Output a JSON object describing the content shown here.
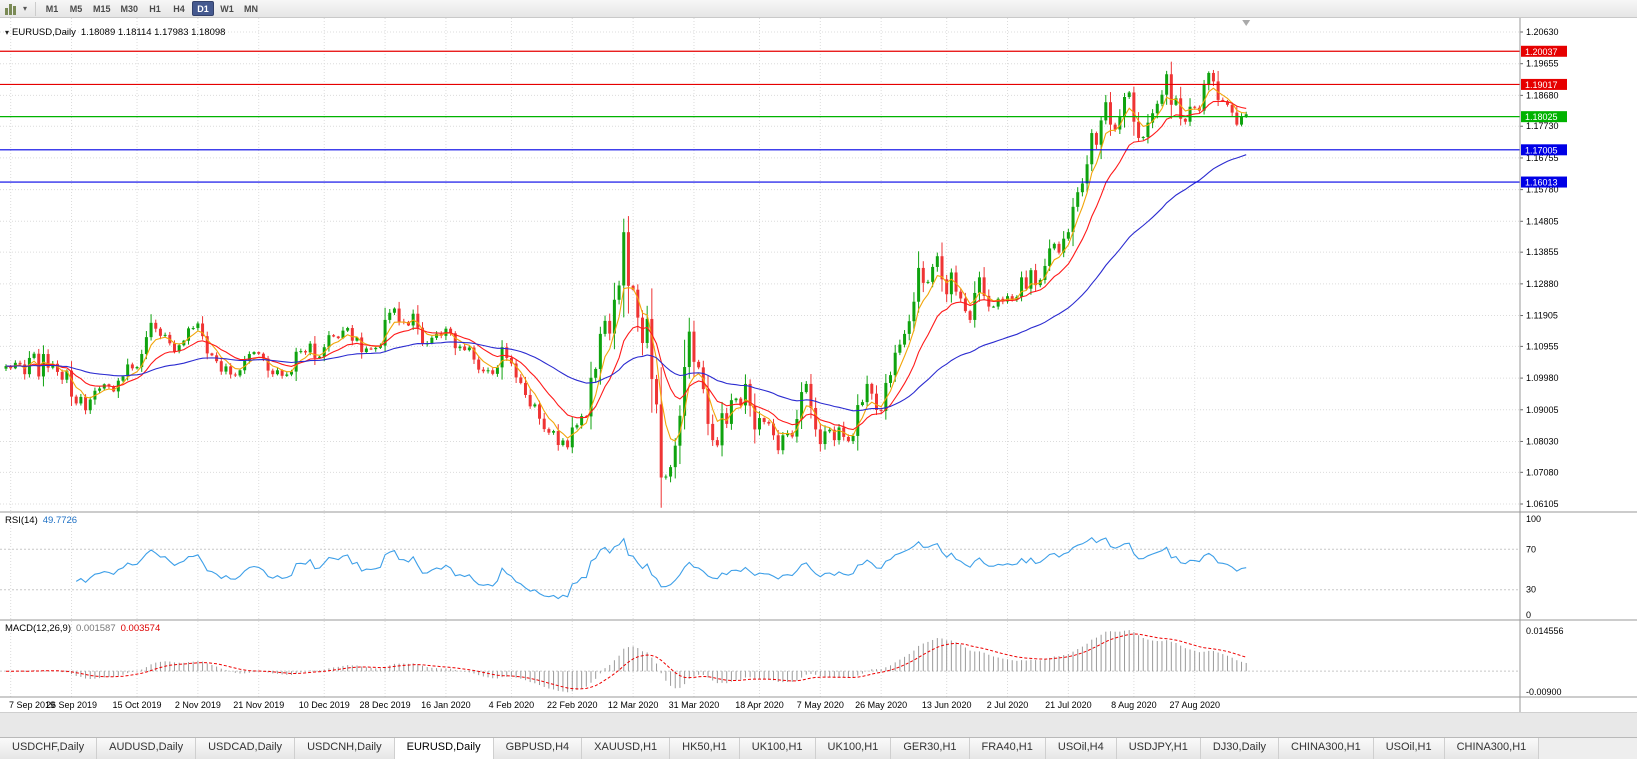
{
  "toolbar": {
    "timeframes": [
      "M1",
      "M5",
      "M15",
      "M30",
      "H1",
      "H4",
      "D1",
      "W1",
      "MN"
    ],
    "active_timeframe": "D1",
    "chart_type_icon": "bar-chart-icon",
    "dropdown_icon": "chevron-down-icon"
  },
  "main_chart": {
    "title": "EURUSD,Daily",
    "ohlc": "1.18089 1.18114 1.17983 1.18098",
    "y_axis_labels": [
      "1.20630",
      "1.19655",
      "1.18680",
      "1.17730",
      "1.16755",
      "1.15780",
      "1.14805",
      "1.13855",
      "1.12880",
      "1.11905",
      "1.10955",
      "1.09980",
      "1.09005",
      "1.08030",
      "1.07080",
      "1.06105"
    ],
    "price_tags": [
      {
        "value": "1.20037",
        "color": "#e60000"
      },
      {
        "value": "1.19017",
        "color": "#e60000"
      },
      {
        "value": "1.18025",
        "color": "#00b300"
      },
      {
        "value": "1.17005",
        "color": "#0000e6"
      },
      {
        "value": "1.16013",
        "color": "#0000e6"
      }
    ]
  },
  "rsi_panel": {
    "name": "RSI(14)",
    "value": "49.7726",
    "axis_labels": [
      "100",
      "70",
      "30",
      "0"
    ],
    "level_lines": [
      70,
      30
    ],
    "line_color": "#3d9fe8"
  },
  "macd_panel": {
    "name": "MACD(12,26,9)",
    "main_value": "0.001587",
    "signal_value": "0.003574",
    "axis_max_label": "0.014556",
    "axis_min_label": "-0.00900",
    "histogram_color": "#9a9a9a",
    "signal_color": "#ee0000"
  },
  "bottom_tabs": {
    "active_index": 4,
    "tabs": [
      "USDCHF,Daily",
      "AUDUSD,Daily",
      "USDCAD,Daily",
      "USDCNH,Daily",
      "EURUSD,Daily",
      "GBPUSD,H4",
      "XAUUSD,H1",
      "HK50,H1",
      "UK100,H1",
      "UK100,H1",
      "GER30,H1",
      "FRA40,H1",
      "USOil,H4",
      "USDJPY,H1",
      "DJ30,Daily",
      "CHINA300,H1",
      "USOil,H1",
      "CHINA300,H1"
    ]
  },
  "chart_data": {
    "type": "candlestick",
    "symbol": "EURUSD",
    "period": "Daily",
    "current_ohlc": {
      "open": 1.18089,
      "high": 1.18114,
      "low": 1.17983,
      "close": 1.18098
    },
    "price_range": {
      "axis_top": 1.21061,
      "axis_bottom": 1.05859
    },
    "up_color": "#0fa30f",
    "down_color": "#ef3434",
    "x_labels": [
      "7 Sep 2019",
      "26 Sep 2019",
      "15 Oct 2019",
      "2 Nov 2019",
      "21 Nov 2019",
      "10 Dec 2019",
      "28 Dec 2019",
      "16 Jan 2020",
      "4 Feb 2020",
      "22 Feb 2020",
      "12 Mar 2020",
      "31 Mar 2020",
      "18 Apr 2020",
      "7 May 2020",
      "26 May 2020",
      "13 Jun 2020",
      "2 Jul 2020",
      "21 Jul 2020",
      "8 Aug 2020",
      "27 Aug 2020"
    ],
    "horizontal_levels": [
      {
        "price": 1.20037,
        "color": "#e60000"
      },
      {
        "price": 1.19017,
        "color": "#e60000"
      },
      {
        "price": 1.18025,
        "color": "#00b300"
      },
      {
        "price": 1.17005,
        "color": "#0000e6"
      },
      {
        "price": 1.16013,
        "color": "#0000e6"
      }
    ],
    "moving_averages": [
      {
        "period": 5,
        "color": "#f2a50a"
      },
      {
        "period": 14,
        "color": "#ff1a1a"
      },
      {
        "period": 50,
        "color": "#2b2bd0"
      }
    ],
    "indicators": [
      {
        "name": "RSI",
        "period": 14,
        "value": 49.7726
      },
      {
        "name": "MACD",
        "fast": 12,
        "slow": 26,
        "signal": 9,
        "main": 0.001587,
        "signal_value": 0.003574
      }
    ],
    "closes": [
      1.1035,
      1.1028,
      1.1045,
      1.104,
      1.101,
      1.106,
      1.1073,
      1.1003,
      1.1072,
      1.103,
      1.1042,
      1.1017,
      1.0993,
      1.1021,
      1.0941,
      1.092,
      1.094,
      1.0899,
      1.0932,
      1.0959,
      1.0966,
      1.0979,
      1.0972,
      1.0957,
      1.099,
      1.1003,
      1.104,
      1.1028,
      1.1032,
      1.1072,
      1.1124,
      1.1168,
      1.115,
      1.1128,
      1.1131,
      1.1105,
      1.108,
      1.1099,
      1.1113,
      1.1151,
      1.1152,
      1.1166,
      1.1127,
      1.1074,
      1.1068,
      1.105,
      1.1018,
      1.1034,
      1.1009,
      1.1006,
      1.1022,
      1.1051,
      1.1072,
      1.1078,
      1.1073,
      1.1058,
      1.1021,
      1.101,
      1.1022,
      1.1005,
      1.1009,
      1.1018,
      1.1079,
      1.1081,
      1.1077,
      1.1104,
      1.106,
      1.1064,
      1.1093,
      1.113,
      1.1126,
      1.1121,
      1.1144,
      1.1152,
      1.1113,
      1.1123,
      1.1078,
      1.1089,
      1.1087,
      1.1091,
      1.1098,
      1.1177,
      1.1199,
      1.1212,
      1.1172,
      1.1171,
      1.116,
      1.1196,
      1.1153,
      1.1103,
      1.1105,
      1.1122,
      1.1134,
      1.1128,
      1.115,
      1.1136,
      1.109,
      1.1095,
      1.1084,
      1.1092,
      1.1055,
      1.1024,
      1.1019,
      1.1022,
      1.1011,
      1.1031,
      1.1093,
      1.106,
      1.1043,
      1.1,
      1.0983,
      1.0946,
      1.0911,
      1.0917,
      1.0873,
      1.0841,
      1.083,
      1.0835,
      1.0792,
      1.0806,
      1.0785,
      1.0846,
      1.0853,
      1.0881,
      1.088,
      1.0999,
      1.1026,
      1.1134,
      1.1174,
      1.1135,
      1.1239,
      1.1283,
      1.1447,
      1.1282,
      1.127,
      1.1184,
      1.1106,
      1.118,
      1.0995,
      1.0917,
      1.0692,
      1.0695,
      1.0724,
      1.079,
      1.0882,
      1.1032,
      1.1141,
      1.1048,
      1.1031,
      1.0964,
      1.0857,
      1.0807,
      1.0791,
      1.089,
      1.0857,
      1.093,
      1.0935,
      1.0914,
      1.098,
      1.0913,
      1.084,
      1.0875,
      1.0863,
      1.0858,
      1.0822,
      1.0776,
      1.0822,
      1.0829,
      1.0818,
      1.0872,
      1.0955,
      1.098,
      1.0906,
      1.084,
      1.0795,
      1.0834,
      1.0839,
      1.0807,
      1.0846,
      1.0817,
      1.0804,
      1.082,
      1.0915,
      1.0924,
      1.098,
      1.095,
      1.09,
      1.0897,
      1.0983,
      1.1007,
      1.1076,
      1.1101,
      1.1134,
      1.1173,
      1.1233,
      1.1337,
      1.1291,
      1.1294,
      1.134,
      1.1373,
      1.1302,
      1.1256,
      1.1323,
      1.1264,
      1.1243,
      1.1204,
      1.1177,
      1.126,
      1.1308,
      1.1251,
      1.1218,
      1.1218,
      1.1242,
      1.1234,
      1.125,
      1.1239,
      1.1248,
      1.1308,
      1.1273,
      1.133,
      1.1284,
      1.13,
      1.1343,
      1.1397,
      1.1411,
      1.1384,
      1.1427,
      1.1447,
      1.1525,
      1.157,
      1.1597,
      1.1656,
      1.1752,
      1.1716,
      1.1791,
      1.1847,
      1.1778,
      1.1763,
      1.1803,
      1.1863,
      1.1877,
      1.1787,
      1.1737,
      1.174,
      1.1784,
      1.1813,
      1.1842,
      1.187,
      1.1933,
      1.1839,
      1.1859,
      1.1796,
      1.1787,
      1.1833,
      1.183,
      1.1821,
      1.1903,
      1.1937,
      1.1911,
      1.1854,
      1.185,
      1.1839,
      1.1815,
      1.1778,
      1.1802,
      1.18098
    ]
  }
}
